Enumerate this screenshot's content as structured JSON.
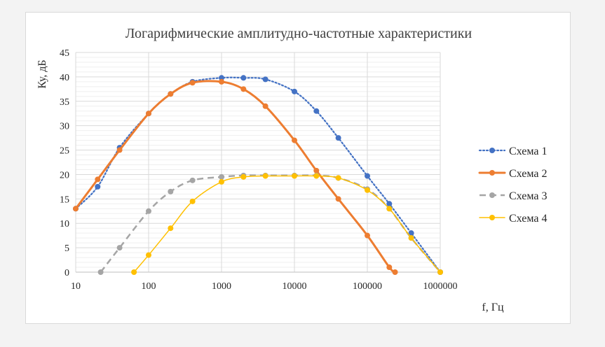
{
  "chart_data": {
    "type": "line",
    "title": "Логарифмические амплитудно-частотные характеристики",
    "xlabel": "f, Гц",
    "ylabel": "Ку, дБ",
    "x_scale": "log",
    "xlim": [
      10,
      1000000
    ],
    "ylim": [
      0,
      45
    ],
    "x_ticks": [
      "10",
      "100",
      "1000",
      "10000",
      "100000",
      "1000000"
    ],
    "y_ticks": [
      "0",
      "5",
      "10",
      "15",
      "20",
      "25",
      "30",
      "35",
      "40",
      "45"
    ],
    "grid": true,
    "legend_position": "right",
    "series": [
      {
        "name": "Схема 1",
        "color": "#4472c4",
        "style": "dotted",
        "x": [
          10,
          20,
          40,
          100,
          200,
          400,
          1000,
          2000,
          4000,
          10000,
          20000,
          40000,
          100000,
          200000,
          400000,
          1000000
        ],
        "y": [
          13,
          17.5,
          25.5,
          32.5,
          36.5,
          39,
          39.8,
          39.8,
          39.5,
          37,
          33,
          27.5,
          19.7,
          14,
          8,
          0
        ]
      },
      {
        "name": "Схема 2",
        "color": "#ed7d31",
        "style": "solid-thick",
        "x": [
          10,
          20,
          40,
          100,
          200,
          400,
          1000,
          2000,
          4000,
          10000,
          20000,
          40000,
          100000,
          200000,
          240000
        ],
        "y": [
          13,
          19,
          25,
          32.5,
          36.5,
          38.8,
          39,
          37.5,
          34,
          27,
          20.8,
          15,
          7.5,
          1,
          0
        ]
      },
      {
        "name": "Схема 3",
        "color": "#a5a5a5",
        "style": "dashed",
        "x": [
          22,
          40,
          100,
          200,
          400,
          1000,
          2000,
          4000,
          10000,
          20000,
          40000,
          100000,
          200000,
          400000,
          1000000
        ],
        "y": [
          0,
          5,
          12.5,
          16.5,
          18.8,
          19.5,
          19.8,
          19.8,
          19.8,
          19.8,
          19.3,
          17,
          13,
          7,
          0
        ]
      },
      {
        "name": "Схема 4",
        "color": "#ffc000",
        "style": "solid-thin",
        "x": [
          63,
          100,
          200,
          400,
          1000,
          2000,
          4000,
          10000,
          20000,
          40000,
          100000,
          200000,
          400000,
          1000000
        ],
        "y": [
          0,
          3.5,
          9,
          14.5,
          18.5,
          19.5,
          19.7,
          19.7,
          19.7,
          19.3,
          16.8,
          13,
          7,
          0
        ]
      }
    ]
  }
}
